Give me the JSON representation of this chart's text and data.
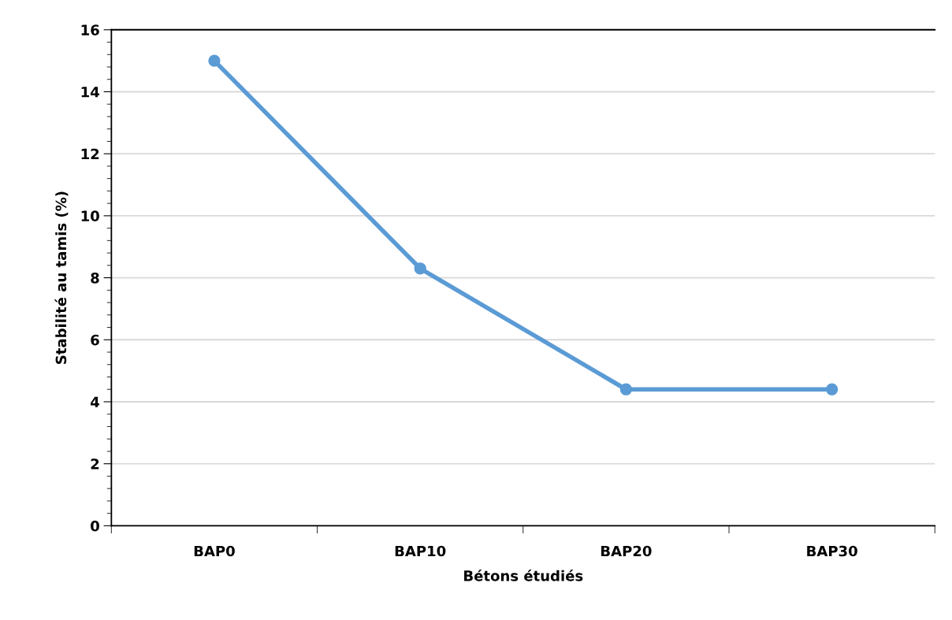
{
  "chart_data": {
    "type": "line",
    "xlabel": "Bétons étudiés",
    "ylabel": "Stabilité au tamis (%)",
    "categories": [
      "BAP0",
      "BAP10",
      "BAP20",
      "BAP30"
    ],
    "series": [
      {
        "color": "#5b9bd5",
        "values": [
          15,
          8.3,
          4.4,
          4.4
        ]
      }
    ],
    "ylim": [
      0,
      16
    ],
    "yticks": [
      0,
      2,
      4,
      6,
      8,
      10,
      12,
      14,
      16
    ],
    "grid": "y",
    "marker": "circle",
    "line_style": "solid",
    "legend": false
  }
}
